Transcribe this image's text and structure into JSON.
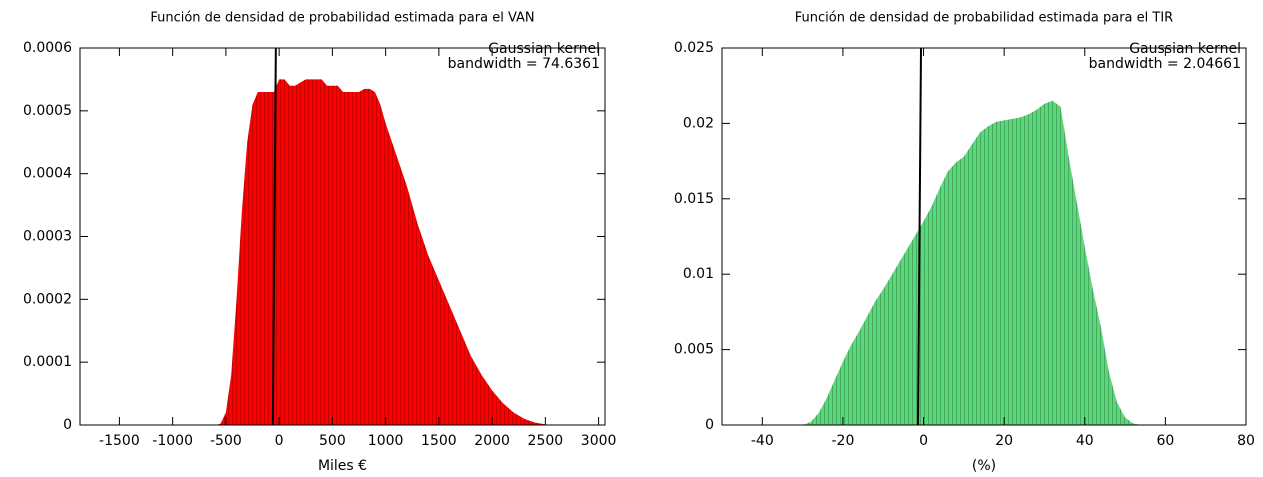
{
  "chart_data": [
    {
      "type": "area",
      "title": "Función de densidad de probabilidad estimada para el VAN",
      "xlabel": "Miles €",
      "annotations": [
        "Gaussian kernel",
        "bandwidth = 74.6361"
      ],
      "color": "#ff0000",
      "reference_x": -45,
      "x": [
        -1800,
        -700,
        -600,
        -550,
        -500,
        -450,
        -400,
        -350,
        -300,
        -250,
        -200,
        -150,
        -100,
        -50,
        0,
        50,
        100,
        150,
        200,
        250,
        300,
        350,
        400,
        450,
        500,
        550,
        600,
        650,
        700,
        750,
        800,
        850,
        900,
        950,
        1000,
        1100,
        1200,
        1300,
        1400,
        1500,
        1600,
        1700,
        1800,
        1900,
        2000,
        2100,
        2200,
        2300,
        2400,
        2500,
        2600,
        3000
      ],
      "values": [
        0,
        0,
        0,
        2e-06,
        2e-05,
        8e-05,
        0.0002,
        0.00034,
        0.00045,
        0.00051,
        0.00053,
        0.00053,
        0.00053,
        0.00053,
        0.00055,
        0.00055,
        0.00054,
        0.00054,
        0.000545,
        0.00055,
        0.00055,
        0.00055,
        0.00055,
        0.00054,
        0.00054,
        0.00054,
        0.00053,
        0.00053,
        0.00053,
        0.00053,
        0.000535,
        0.000535,
        0.00053,
        0.00051,
        0.00048,
        0.00043,
        0.00038,
        0.00032,
        0.00027,
        0.00023,
        0.00019,
        0.00015,
        0.00011,
        8e-05,
        5.5e-05,
        3.5e-05,
        2e-05,
        1e-05,
        4e-06,
        1e-06,
        0,
        0
      ],
      "xlim": [
        -1870,
        3060
      ],
      "xticks": [
        -1500,
        -1000,
        -500,
        0,
        500,
        1000,
        1500,
        2000,
        2500,
        3000
      ],
      "ylim": [
        0,
        0.0006
      ],
      "yticks": [
        0,
        0.0001,
        0.0002,
        0.0003,
        0.0004,
        0.0005,
        0.0006
      ]
    },
    {
      "type": "area",
      "title": "Función de densidad de probabilidad estimada para el TIR",
      "xlabel": "(%)",
      "annotations": [
        "Gaussian kernel",
        "bandwidth = 2.04661"
      ],
      "color": "#5ad97a",
      "reference_x": -1,
      "x": [
        -50,
        -30,
        -28,
        -26,
        -24,
        -22,
        -20,
        -18,
        -16,
        -14,
        -12,
        -10,
        -8,
        -6,
        -4,
        -2,
        0,
        2,
        4,
        6,
        8,
        10,
        12,
        14,
        16,
        18,
        20,
        22,
        24,
        26,
        28,
        30,
        32,
        34,
        36,
        38,
        40,
        42,
        44,
        46,
        48,
        50,
        52,
        54,
        80
      ],
      "values": [
        0,
        0,
        0.0002,
        0.0008,
        0.0018,
        0.003,
        0.0042,
        0.0053,
        0.0062,
        0.0072,
        0.0082,
        0.009,
        0.0099,
        0.0108,
        0.0117,
        0.0126,
        0.0135,
        0.0145,
        0.0157,
        0.0168,
        0.0174,
        0.0178,
        0.0186,
        0.0194,
        0.0198,
        0.0201,
        0.0202,
        0.0203,
        0.0204,
        0.0206,
        0.0209,
        0.0213,
        0.0215,
        0.0211,
        0.0178,
        0.0148,
        0.0118,
        0.009,
        0.0065,
        0.0035,
        0.0015,
        0.0005,
        0.0001,
        0,
        0
      ],
      "xlim": [
        -50,
        80
      ],
      "xticks": [
        -40,
        -20,
        0,
        20,
        40,
        60,
        80
      ],
      "ylim": [
        0,
        0.025
      ],
      "yticks": [
        0,
        0.005,
        0.01,
        0.015,
        0.02,
        0.025
      ]
    }
  ]
}
